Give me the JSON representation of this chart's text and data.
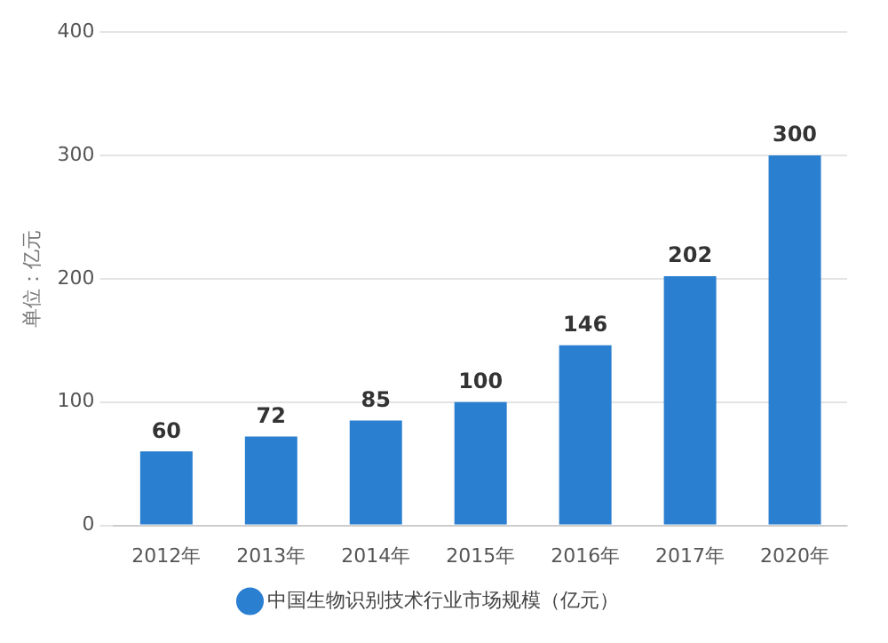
{
  "chart_data": {
    "type": "bar",
    "ylabel": "单位：亿元",
    "categories": [
      "2012年",
      "2013年",
      "2014年",
      "2015年",
      "2016年",
      "2017年",
      "2020年"
    ],
    "series": [
      {
        "name": "中国生物识别技术行业市场规模（亿元）",
        "color": "#2a7fd0",
        "values": [
          60,
          72,
          85,
          100,
          146,
          202,
          300
        ]
      }
    ],
    "ylim": [
      0,
      400
    ],
    "yticks": [
      0,
      100,
      200,
      300,
      400
    ],
    "grid": "y",
    "legend": "bottom",
    "data_labels": true
  }
}
